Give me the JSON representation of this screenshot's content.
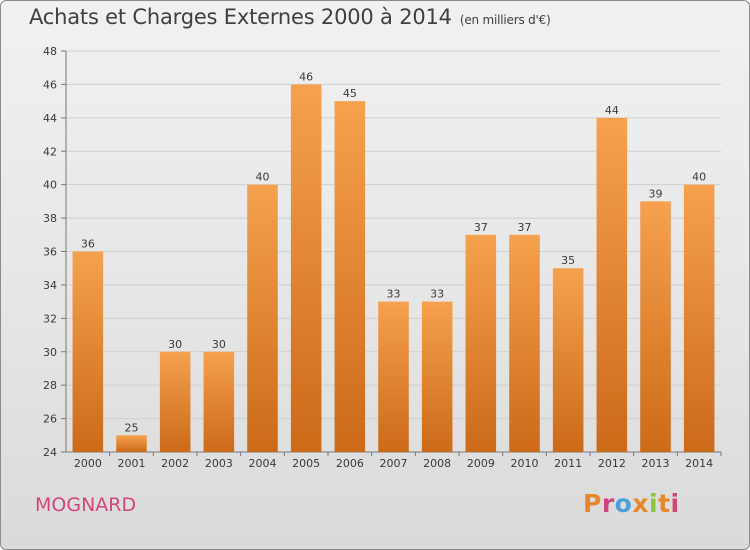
{
  "header": {
    "title": "Achats et Charges Externes 2000 à 2014",
    "unit": "(en milliers d'€)"
  },
  "footer": {
    "commune": "MOGNARD",
    "logo_text": "Proxiti"
  },
  "colors": {
    "bar_light": "#f5a14e",
    "bar_dark": "#cc6a18",
    "commune": "#d2457c",
    "logo_letters": [
      "#e8872a",
      "#d2457c",
      "#4aa0d8",
      "#e8872a",
      "#8cc63f",
      "#e8872a",
      "#d2457c"
    ]
  },
  "chart_data": {
    "type": "bar",
    "title": "Achats et Charges Externes 2000 à 2014",
    "subtitle": "(en milliers d'€)",
    "categories": [
      "2000",
      "2001",
      "2002",
      "2003",
      "2004",
      "2005",
      "2006",
      "2007",
      "2008",
      "2009",
      "2010",
      "2011",
      "2012",
      "2013",
      "2014"
    ],
    "values": [
      36,
      25,
      30,
      30,
      40,
      46,
      45,
      33,
      33,
      37,
      37,
      35,
      44,
      39,
      40
    ],
    "data_labels": [
      "36",
      "25",
      "30",
      "30",
      "40",
      "46",
      "45",
      "33",
      "33",
      "37",
      "37",
      "35",
      "44",
      "39",
      "40"
    ],
    "ylim": [
      24,
      48
    ],
    "yticks": [
      24,
      26,
      28,
      30,
      32,
      34,
      36,
      38,
      40,
      42,
      44,
      46,
      48
    ],
    "grid": true,
    "legend": "none"
  }
}
